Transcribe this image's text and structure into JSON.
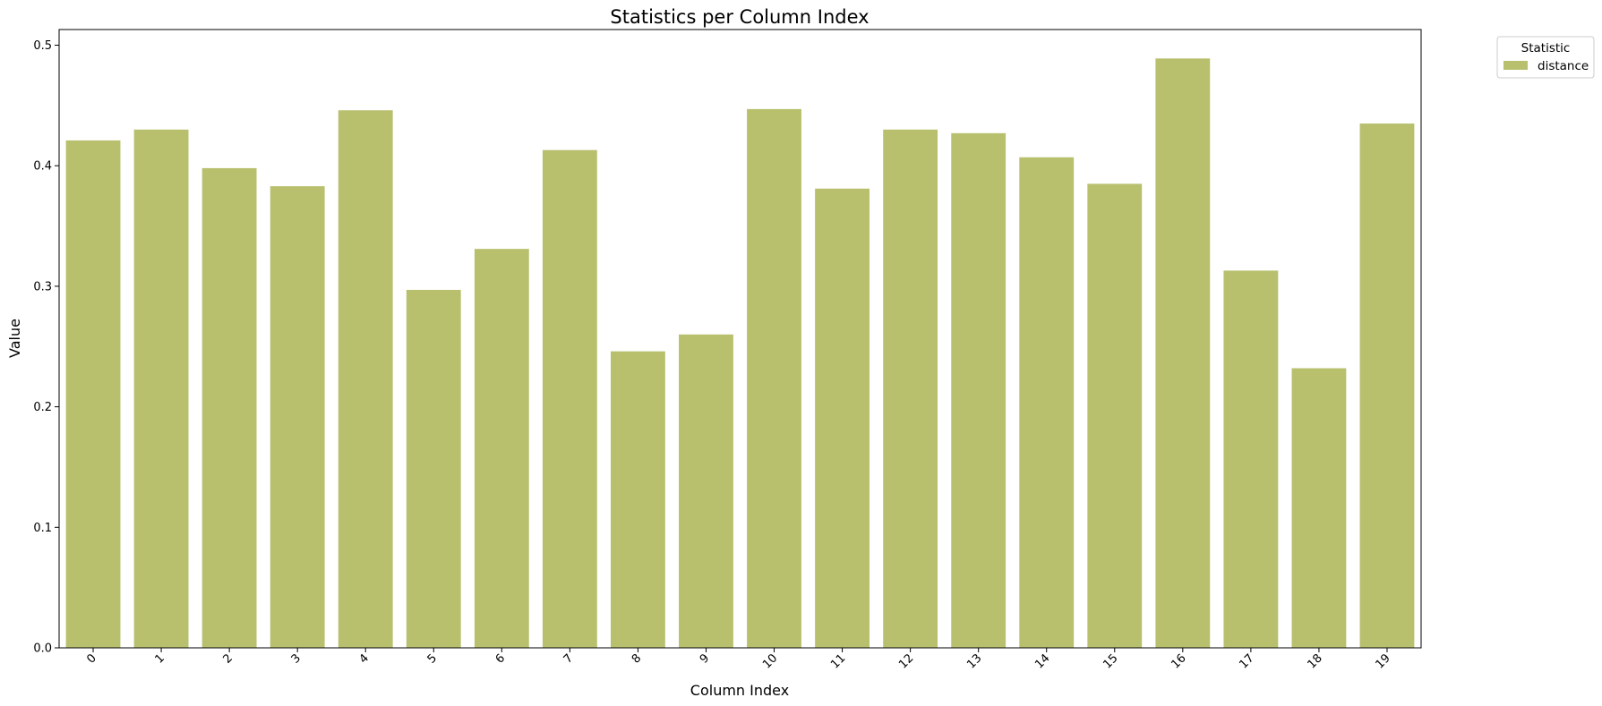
{
  "chart_data": {
    "type": "bar",
    "title": "Statistics per Column Index",
    "xlabel": "Column Index",
    "ylabel": "Value",
    "categories": [
      "0",
      "1",
      "2",
      "3",
      "4",
      "5",
      "6",
      "7",
      "8",
      "9",
      "10",
      "11",
      "12",
      "13",
      "14",
      "15",
      "16",
      "17",
      "18",
      "19"
    ],
    "series": [
      {
        "name": "distance",
        "values": [
          0.421,
          0.43,
          0.398,
          0.383,
          0.446,
          0.297,
          0.331,
          0.413,
          0.246,
          0.26,
          0.447,
          0.381,
          0.43,
          0.427,
          0.407,
          0.385,
          0.489,
          0.313,
          0.232,
          0.435
        ]
      }
    ],
    "ylim": [
      0,
      0.513
    ],
    "yticks": [
      0.0,
      0.1,
      0.2,
      0.3,
      0.4,
      0.5
    ],
    "ytick_labels": [
      "0.0",
      "0.1",
      "0.2",
      "0.3",
      "0.4",
      "0.5"
    ],
    "legend": {
      "title": "Statistic",
      "placement": "outside-top-right"
    },
    "grid": false,
    "bar_color": "#b8c06e"
  }
}
